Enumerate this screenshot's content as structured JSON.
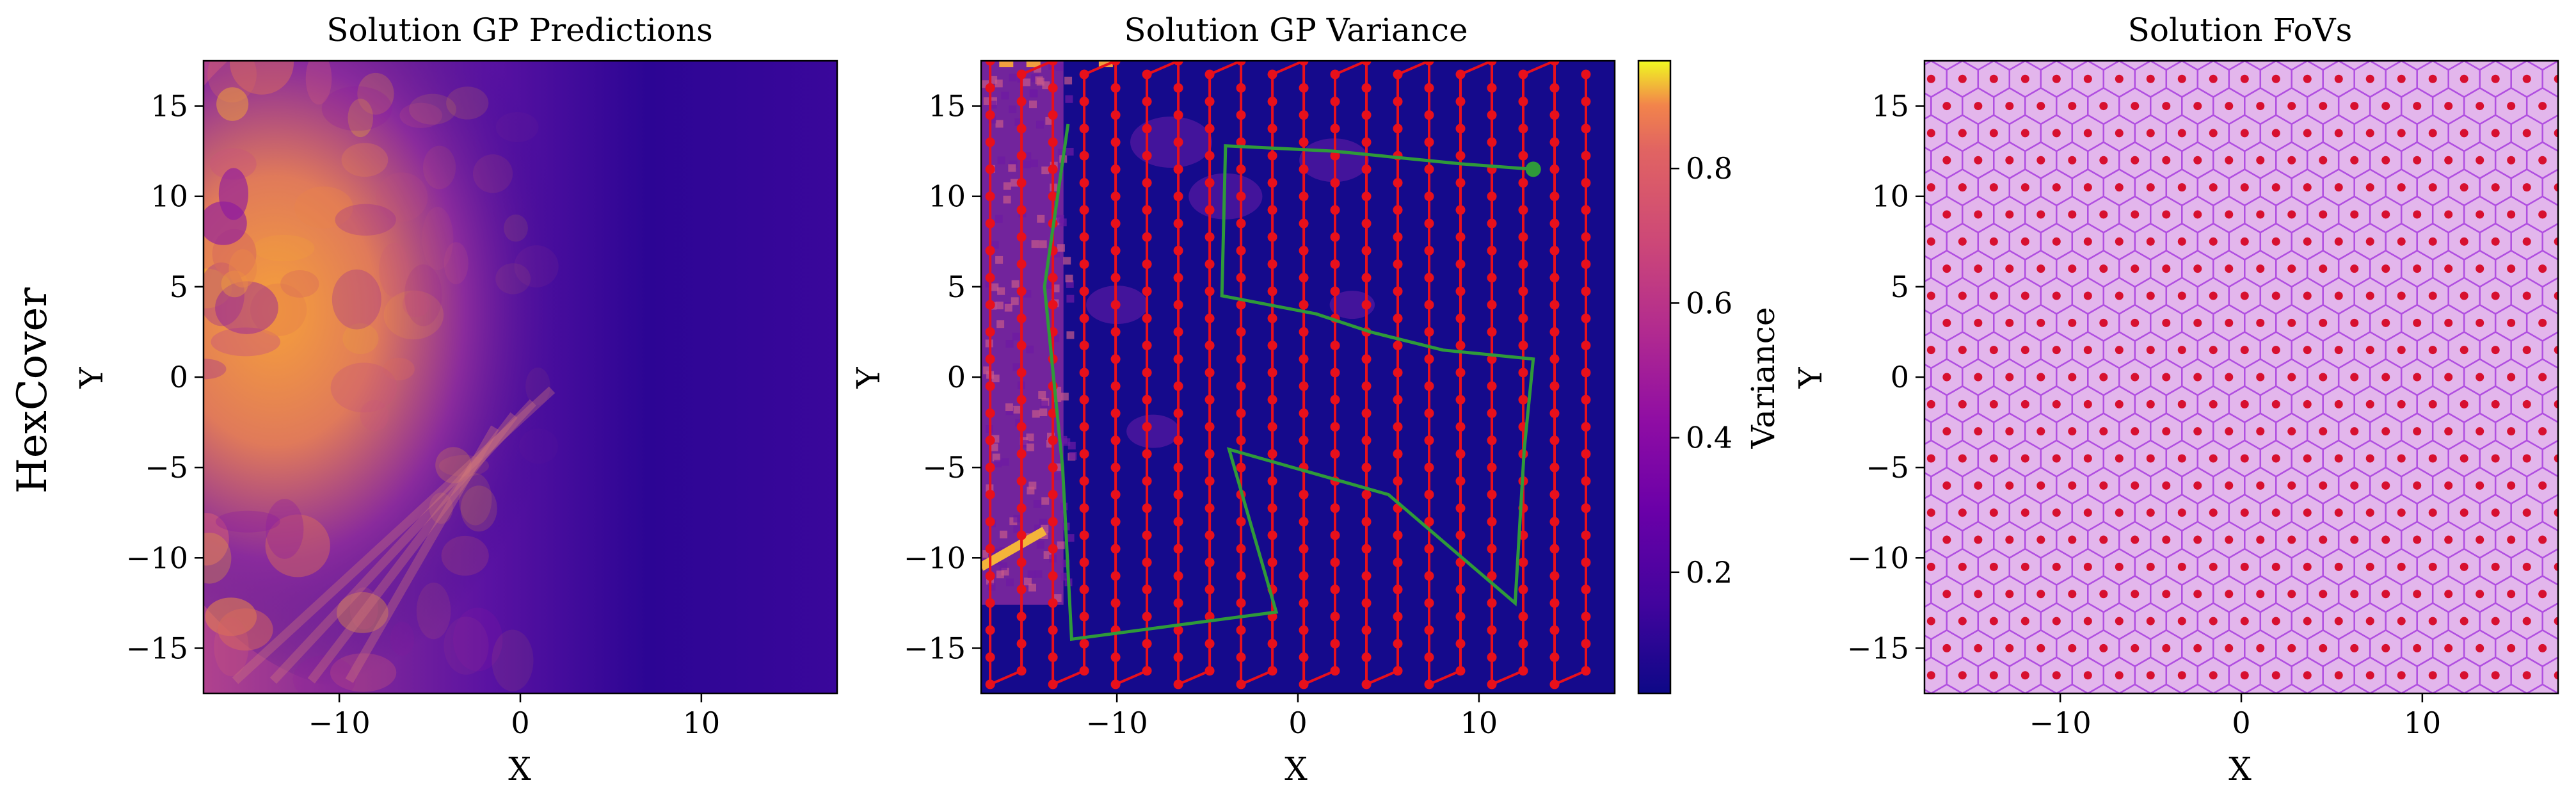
{
  "row_label": "HexCover",
  "chart_data": [
    {
      "type": "heatmap",
      "title": "Solution GP Predictions",
      "xlabel": "X",
      "ylabel": "Y",
      "xlim": [
        -17.5,
        17.5
      ],
      "ylim": [
        -17.5,
        17.5
      ],
      "xticks": [
        -10,
        0,
        10
      ],
      "yticks": [
        -15,
        -10,
        -5,
        0,
        5,
        10,
        15
      ],
      "colormap": "plasma",
      "grid": false
    },
    {
      "type": "heatmap",
      "title": "Solution GP Variance",
      "xlabel": "X",
      "ylabel": "Y",
      "xlim": [
        -17.5,
        17.5
      ],
      "ylim": [
        -17.5,
        17.5
      ],
      "xticks": [
        -10,
        0,
        10
      ],
      "yticks": [
        -15,
        -10,
        -5,
        0,
        5,
        10,
        15
      ],
      "colormap": "plasma",
      "colorbar": {
        "label": "Variance",
        "range": [
          0.02,
          0.96
        ],
        "ticks": [
          0.2,
          0.4,
          0.6,
          0.8
        ]
      },
      "grid": false,
      "overlay": {
        "waypoint_color": "#e8101b",
        "path_color": "#2f9a3a",
        "path": [
          [
            13,
            11.5
          ],
          [
            9,
            11.8
          ],
          [
            5,
            12.2
          ],
          [
            2,
            12.5
          ],
          [
            -4,
            12.8
          ],
          [
            -4.2,
            4.5
          ],
          [
            1,
            3.5
          ],
          [
            4,
            2.5
          ],
          [
            8,
            1.5
          ],
          [
            13,
            1
          ],
          [
            12.5,
            -4
          ],
          [
            12,
            -12.5
          ],
          [
            5,
            -6.5
          ],
          [
            -3.8,
            -4
          ],
          [
            -1.2,
            -13
          ],
          [
            -12.5,
            -14.5
          ],
          [
            -13,
            -5
          ],
          [
            -14,
            5
          ],
          [
            -12.7,
            14
          ]
        ],
        "path_start": [
          13,
          11.5
        ]
      }
    },
    {
      "type": "scatter",
      "title": "Solution FoVs",
      "xlabel": "X",
      "ylabel": "Y",
      "xlim": [
        -17.5,
        17.5
      ],
      "ylim": [
        -17.5,
        17.5
      ],
      "xticks": [
        -10,
        0,
        10
      ],
      "yticks": [
        -15,
        -10,
        -5,
        0,
        5,
        10,
        15
      ],
      "grid": false,
      "hex_grid": {
        "spacing_x": 1.732,
        "spacing_y": 1.5,
        "fill": "#e3b6ec",
        "edge": "#b04fe0",
        "point_color": "#d7102f"
      }
    }
  ]
}
